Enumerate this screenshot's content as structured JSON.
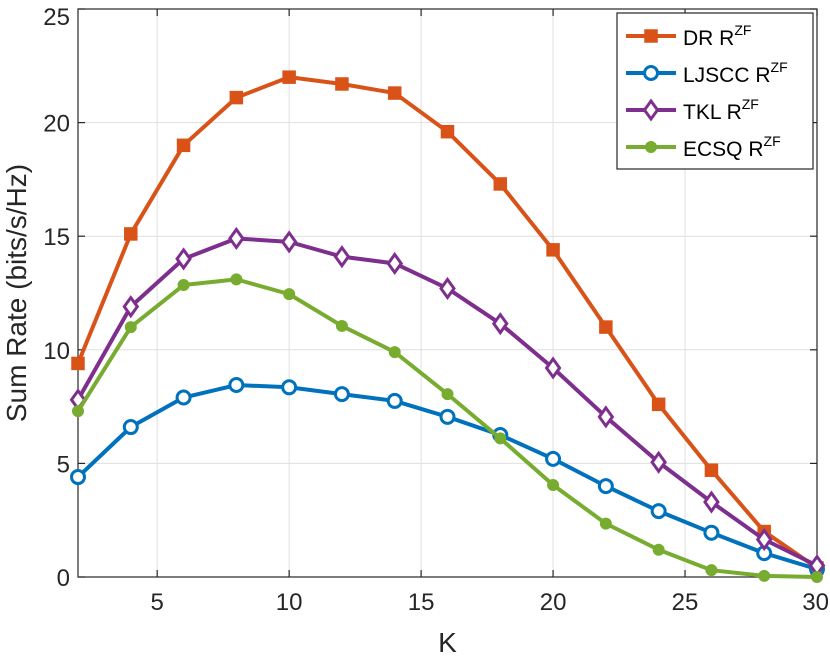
{
  "chart_data": {
    "type": "line",
    "title": "",
    "xlabel": "K",
    "ylabel": "Sum Rate (bits/s/Hz)",
    "xlim": [
      2,
      30
    ],
    "ylim": [
      0,
      25
    ],
    "xticks": [
      5,
      10,
      15,
      20,
      25,
      30
    ],
    "yticks": [
      0,
      5,
      10,
      15,
      20,
      25
    ],
    "grid": true,
    "legend_position": "top-right",
    "x": [
      2,
      4,
      6,
      8,
      10,
      12,
      14,
      16,
      18,
      20,
      22,
      24,
      26,
      28,
      30
    ],
    "series": [
      {
        "name": "DR R",
        "superscript": "ZF",
        "marker": "square",
        "color": "#D95319",
        "values": [
          9.4,
          15.1,
          19.0,
          21.1,
          22.0,
          21.7,
          21.3,
          19.6,
          17.3,
          14.4,
          11.0,
          7.6,
          4.7,
          2.0,
          0.4
        ]
      },
      {
        "name": "LJSCC R",
        "superscript": "ZF",
        "marker": "circle",
        "color": "#0072BD",
        "values": [
          4.4,
          6.6,
          7.9,
          8.45,
          8.35,
          8.05,
          7.75,
          7.05,
          6.25,
          5.2,
          4.0,
          2.9,
          1.95,
          1.05,
          0.35
        ]
      },
      {
        "name": "TKL R",
        "superscript": "ZF",
        "marker": "diamond",
        "color": "#7E2F8E",
        "values": [
          7.8,
          11.9,
          14.0,
          14.9,
          14.75,
          14.1,
          13.8,
          12.7,
          11.15,
          9.2,
          7.05,
          5.05,
          3.3,
          1.65,
          0.5
        ]
      },
      {
        "name": "ECSQ R",
        "superscript": "ZF",
        "marker": "dot",
        "color": "#77AC30",
        "values": [
          7.3,
          11.0,
          12.85,
          13.1,
          12.45,
          11.05,
          9.9,
          8.05,
          6.1,
          4.05,
          2.35,
          1.2,
          0.3,
          0.05,
          0.0
        ]
      }
    ]
  }
}
